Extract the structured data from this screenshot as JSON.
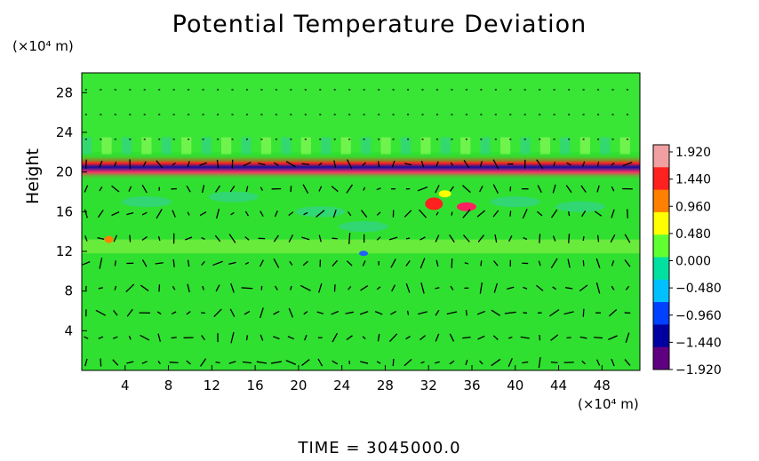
{
  "chart_data": {
    "type": "heatmap",
    "title": "Potential Temperature Deviation",
    "ylabel": "Height",
    "y_unit": "(×10⁴ m)",
    "x_unit": "(×10⁴ m)",
    "xlim": [
      0,
      51.5
    ],
    "ylim": [
      0,
      30
    ],
    "x_ticks": [
      "4",
      "8",
      "12",
      "16",
      "20",
      "24",
      "28",
      "32",
      "36",
      "40",
      "44",
      "48"
    ],
    "x_tick_values": [
      4,
      8,
      12,
      16,
      20,
      24,
      28,
      32,
      36,
      40,
      44,
      48
    ],
    "y_ticks": [
      "4",
      "8",
      "12",
      "16",
      "20",
      "24",
      "28"
    ],
    "y_tick_values": [
      4,
      8,
      12,
      16,
      20,
      24,
      28
    ],
    "colorbar": {
      "labels": [
        "1.920",
        "1.440",
        "0.960",
        "0.480",
        "0.000",
        "−0.480",
        "−0.960",
        "−1.440",
        "−1.920"
      ],
      "values": [
        1.92,
        1.44,
        0.96,
        0.48,
        0.0,
        -0.48,
        -0.96,
        -1.44,
        -1.92
      ],
      "colors": [
        "#f0a0a0",
        "#ff2020",
        "#ff8000",
        "#ffff00",
        "#60ff30",
        "#00e0a0",
        "#00c0ff",
        "#0040ff",
        "#0000a0",
        "#600080"
      ]
    },
    "background_value": 0.0,
    "overlay": "wind vectors (black arrows)"
  },
  "footer": {
    "time_label": "TIME  =  3045000.0"
  },
  "colors": {
    "field_green": "#30e030",
    "arrow": "#000000"
  }
}
